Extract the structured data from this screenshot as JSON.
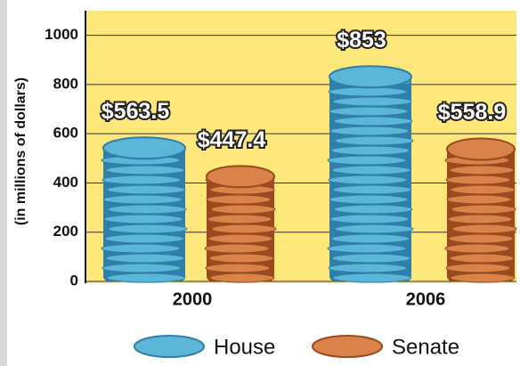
{
  "chart_data": {
    "type": "bar",
    "y_axis_label": "(in millions of dollars)",
    "categories": [
      "2000",
      "2006"
    ],
    "series": [
      {
        "name": "House",
        "color": "#5bb6d8",
        "values": [
          563.5,
          853
        ],
        "value_labels": [
          "$563.5",
          "$853"
        ]
      },
      {
        "name": "Senate",
        "color": "#d9834a",
        "values": [
          447.4,
          558.9
        ],
        "value_labels": [
          "$447.4",
          "$558.9"
        ]
      }
    ],
    "ylim": [
      0,
      1100
    ],
    "yticks": [
      0,
      200,
      400,
      600,
      800,
      1000
    ],
    "grid": true
  }
}
